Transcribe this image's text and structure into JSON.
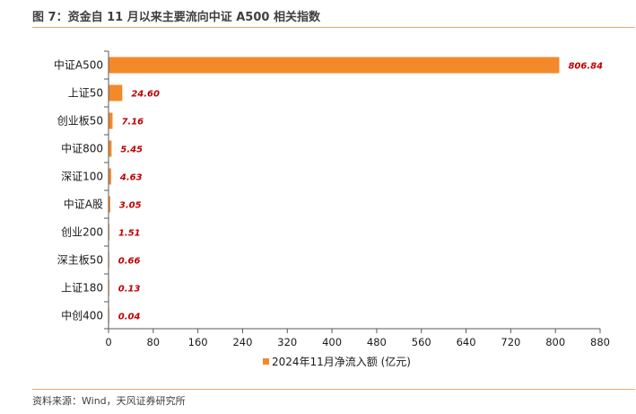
{
  "figure": {
    "title": "图 7：资金自 11 月以来主要流向中证 A500 相关指数",
    "source": "资料来源：Wind，天风证券研究所"
  },
  "colors": {
    "bar": "#f4892a",
    "value_label": "#c00000",
    "rule": "#f0a868"
  },
  "chart_data": {
    "type": "bar",
    "orientation": "horizontal",
    "categories": [
      "中证A500",
      "上证50",
      "创业板50",
      "中证800",
      "深证100",
      "中证A股",
      "创业200",
      "深主板50",
      "上证180",
      "中创400"
    ],
    "series": [
      {
        "name": "2024年11月净流入额 (亿元)",
        "values": [
          806.84,
          24.6,
          7.16,
          5.45,
          4.63,
          3.05,
          1.51,
          0.66,
          0.13,
          0.04
        ]
      }
    ],
    "value_labels": [
      "806.84",
      "24.60",
      "7.16",
      "5.45",
      "4.63",
      "3.05",
      "1.51",
      "0.66",
      "0.13",
      "0.04"
    ],
    "xlim": [
      0,
      880
    ],
    "xticks": [
      "0",
      "80",
      "160",
      "240",
      "320",
      "400",
      "480",
      "560",
      "640",
      "720",
      "800",
      "880"
    ],
    "grid": false,
    "legend_position": "bottom"
  }
}
